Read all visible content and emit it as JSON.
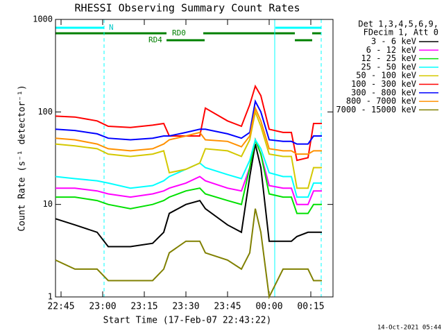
{
  "chart_data": {
    "type": "line",
    "title": "RHESSI Observing Summary Count Rates",
    "xlabel": "Start Time (17-Feb-07 22:43:22)",
    "ylabel": "Count Rate (s⁻¹ detector⁻¹)",
    "legend_header": [
      "Det 1,3,4,5,6,9,",
      "FDecim 1, Att 0"
    ],
    "annotations": [
      "N",
      "RD0",
      "RD4"
    ],
    "footer": "14-Oct-2021 05:44",
    "log_y": true,
    "xlim": [
      1363,
      1463
    ],
    "xticks": [
      {
        "value": 1365,
        "label": "22:45"
      },
      {
        "value": 1380,
        "label": "23:00"
      },
      {
        "value": 1395,
        "label": "23:15"
      },
      {
        "value": 1410,
        "label": "23:30"
      },
      {
        "value": 1425,
        "label": "23:45"
      },
      {
        "value": 1440,
        "label": "00:00"
      },
      {
        "value": 1455,
        "label": "00:15"
      }
    ],
    "ylim": [
      1,
      1000
    ],
    "yticks": [
      1,
      10,
      100,
      1000
    ],
    "x": [
      1363,
      1370,
      1378,
      1382,
      1390,
      1398,
      1402,
      1404,
      1410,
      1415,
      1417,
      1425,
      1430,
      1433,
      1435,
      1437,
      1440,
      1445,
      1448,
      1450,
      1454,
      1456,
      1459
    ],
    "series": [
      {
        "name": "3 - 6 keV",
        "color": "#000000",
        "values": [
          7,
          6,
          5,
          3.5,
          3.5,
          3.8,
          5,
          8,
          10,
          11,
          9,
          6,
          5,
          20,
          45,
          25,
          4,
          4,
          4,
          4.5,
          5,
          5,
          5
        ]
      },
      {
        "name": "6 - 12 keV",
        "color": "#ff00ff",
        "values": [
          15,
          15,
          14,
          13,
          12,
          13,
          14,
          15,
          17,
          20,
          18,
          15,
          14,
          25,
          50,
          35,
          16,
          15,
          15,
          10,
          10,
          14,
          14
        ]
      },
      {
        "name": "12 - 25 keV",
        "color": "#00e000",
        "values": [
          12,
          12,
          11,
          10,
          9,
          10,
          11,
          12,
          14,
          15,
          13,
          11,
          10,
          25,
          50,
          35,
          13,
          12,
          12,
          8,
          8,
          10,
          10
        ]
      },
      {
        "name": "25 - 50 keV",
        "color": "#00ffff",
        "values": [
          20,
          19,
          18,
          17,
          15,
          16,
          18,
          20,
          24,
          28,
          25,
          21,
          19,
          30,
          50,
          40,
          22,
          20,
          20,
          12,
          12,
          17,
          17
        ]
      },
      {
        "name": "50 - 100 keV",
        "color": "#d4c800",
        "values": [
          45,
          43,
          40,
          35,
          33,
          35,
          38,
          22,
          24,
          28,
          40,
          38,
          33,
          50,
          100,
          70,
          35,
          33,
          33,
          15,
          15,
          25,
          25
        ]
      },
      {
        "name": "100 - 300 keV",
        "color": "#ff0000",
        "values": [
          90,
          88,
          80,
          70,
          68,
          72,
          75,
          55,
          55,
          55,
          110,
          80,
          70,
          120,
          190,
          150,
          65,
          60,
          60,
          30,
          32,
          75,
          75
        ]
      },
      {
        "name": "300 - 800 keV",
        "color": "#0000ff",
        "values": [
          65,
          63,
          58,
          52,
          50,
          52,
          55,
          55,
          60,
          65,
          65,
          58,
          52,
          60,
          130,
          100,
          50,
          48,
          48,
          45,
          45,
          55,
          55
        ]
      },
      {
        "name": "800 - 7000 keV",
        "color": "#ff9000",
        "values": [
          52,
          50,
          45,
          40,
          38,
          40,
          45,
          50,
          55,
          60,
          50,
          48,
          42,
          55,
          110,
          80,
          40,
          38,
          38,
          35,
          35,
          38,
          38
        ]
      },
      {
        "name": "7000 - 15000 keV",
        "color": "#808000",
        "values": [
          2.5,
          2,
          2,
          1.5,
          1.5,
          1.5,
          2,
          3,
          4,
          4,
          3,
          2.5,
          2,
          3,
          9,
          5,
          1,
          2,
          2,
          2,
          2,
          1.5,
          1.5
        ]
      }
    ]
  }
}
